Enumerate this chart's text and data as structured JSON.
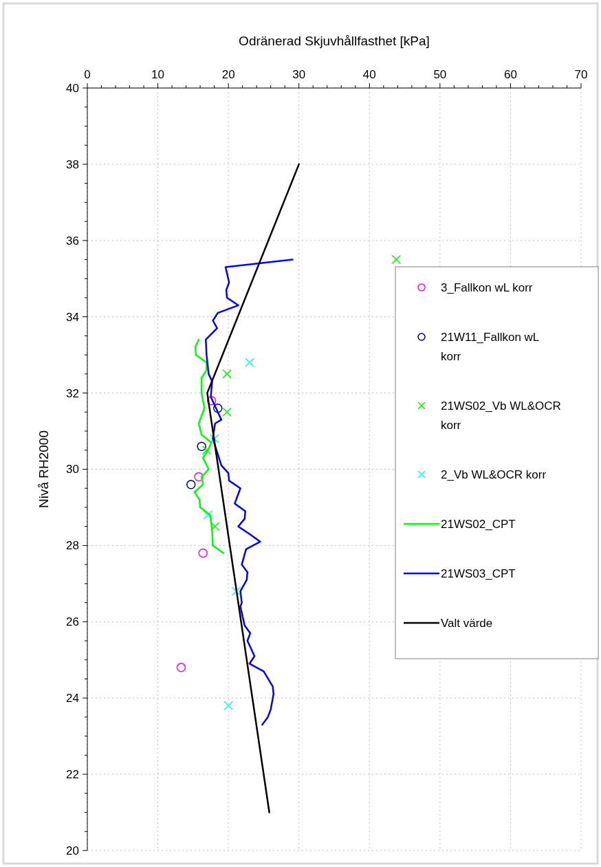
{
  "chart_data": {
    "type": "scatter",
    "xlabel": "Odränerad Skjuvhållfasthet [kPa]",
    "ylabel": "Nivå RH2000",
    "xlim": [
      0,
      70
    ],
    "ylim": [
      20,
      40
    ],
    "xticks": [
      0,
      {
        "value": 2,
        "label": null
      },
      {
        "value": 4,
        "label": null
      },
      {
        "value": 6,
        "label": null
      },
      {
        "value": 8,
        "label": null
      },
      10,
      {
        "value": 12,
        "label": null
      },
      {
        "value": 14,
        "label": null
      },
      {
        "value": 16,
        "label": null
      },
      {
        "value": 18,
        "label": null
      },
      20,
      {
        "value": 22,
        "label": null
      },
      {
        "value": 24,
        "label": null
      },
      {
        "value": 26,
        "label": null
      },
      {
        "value": 28,
        "label": null
      },
      30,
      {
        "value": 32,
        "label": null
      },
      {
        "value": 34,
        "label": null
      },
      {
        "value": 36,
        "label": null
      },
      {
        "value": 38,
        "label": null
      },
      40,
      {
        "value": 42,
        "label": null
      },
      {
        "value": 44,
        "label": null
      },
      {
        "value": 46,
        "label": null
      },
      {
        "value": 48,
        "label": null
      },
      50,
      {
        "value": 52,
        "label": null
      },
      {
        "value": 54,
        "label": null
      },
      {
        "value": 56,
        "label": null
      },
      {
        "value": 58,
        "label": null
      },
      60,
      {
        "value": 62,
        "label": null
      },
      {
        "value": 64,
        "label": null
      },
      {
        "value": 66,
        "label": null
      },
      {
        "value": 68,
        "label": null
      },
      70
    ],
    "yticks": [
      20,
      {
        "value": 20.5,
        "label": null
      },
      {
        "value": 21,
        "label": null
      },
      {
        "value": 21.5,
        "label": null
      },
      22,
      {
        "value": 22.5,
        "label": null
      },
      {
        "value": 23,
        "label": null
      },
      {
        "value": 23.5,
        "label": null
      },
      24,
      {
        "value": 24.5,
        "label": null
      },
      {
        "value": 25,
        "label": null
      },
      {
        "value": 25.5,
        "label": null
      },
      26,
      {
        "value": 26.5,
        "label": null
      },
      {
        "value": 27,
        "label": null
      },
      {
        "value": 27.5,
        "label": null
      },
      28,
      {
        "value": 28.5,
        "label": null
      },
      {
        "value": 29,
        "label": null
      },
      {
        "value": 29.5,
        "label": null
      },
      30,
      {
        "value": 30.5,
        "label": null
      },
      {
        "value": 31,
        "label": null
      },
      {
        "value": 31.5,
        "label": null
      },
      32,
      {
        "value": 32.5,
        "label": null
      },
      {
        "value": 33,
        "label": null
      },
      {
        "value": 33.5,
        "label": null
      },
      34,
      {
        "value": 34.5,
        "label": null
      },
      {
        "value": 35,
        "label": null
      },
      {
        "value": 35.5,
        "label": null
      },
      36,
      {
        "value": 36.5,
        "label": null
      },
      {
        "value": 37,
        "label": null
      },
      {
        "value": 37.5,
        "label": null
      },
      38,
      {
        "value": 38.5,
        "label": null
      },
      {
        "value": 39,
        "label": null
      },
      {
        "value": 39.5,
        "label": null
      },
      40
    ],
    "grid": true,
    "legend": "right",
    "series": [
      {
        "name": "3_Fallkon wL korr",
        "marker": "circle",
        "color": "#ff00ff",
        "x": [
          17.6,
          15.8,
          16.4,
          13.3
        ],
        "values": [
          31.8,
          29.8,
          27.8,
          24.8
        ]
      },
      {
        "name": "21W11_Fallkon wL korr",
        "marker": "circle",
        "color": "#000080",
        "x": [
          18.5,
          16.2,
          14.7
        ],
        "values": [
          31.6,
          30.6,
          29.6
        ]
      },
      {
        "name": "21WS02_Vb WL&OCR korr",
        "marker": "cross",
        "color": "#00ff00",
        "x": [
          43.8,
          19.8,
          19.8,
          16.9,
          18.1
        ],
        "values": [
          35.5,
          32.5,
          31.5,
          30.5,
          28.5
        ]
      },
      {
        "name": "2_Vb WL&OCR korr",
        "marker": "cross",
        "color": "#00ffff",
        "x": [
          23.0,
          18.0,
          17.1,
          21.1,
          20.0
        ],
        "values": [
          32.8,
          30.8,
          28.8,
          26.8,
          23.8
        ]
      },
      {
        "name": "21WS02_CPT",
        "type": "line",
        "marker": "none",
        "color": "#00ff00",
        "x": [
          15.8,
          15.3,
          15.4,
          16.9,
          16.9,
          16.2,
          16.2,
          16.6,
          15.8,
          16.2,
          17.6,
          17.1,
          16.4,
          17.2,
          16.2,
          16.4,
          15.2,
          15.9,
          16.0,
          17.4,
          17.7,
          17.8,
          19.3
        ],
        "values": [
          33.4,
          33.2,
          33.0,
          32.8,
          32.6,
          32.4,
          32.0,
          31.6,
          31.2,
          30.9,
          30.7,
          30.5,
          30.3,
          30.0,
          29.8,
          29.6,
          29.4,
          29.2,
          29.0,
          28.8,
          28.4,
          28.0,
          27.8
        ]
      },
      {
        "name": "21WS03_CPT",
        "type": "line",
        "marker": "none",
        "color": "#0000ff",
        "x": [
          29.1,
          19.6,
          20.1,
          19.7,
          19.8,
          21.4,
          18.5,
          17.8,
          18.4,
          16.8,
          16.9,
          17.2,
          17.7,
          17.5,
          18.0,
          19.0,
          18.1,
          17.8,
          19.0,
          20.0,
          20.1,
          21.7,
          20.9,
          22.4,
          22.3,
          21.4,
          23.0,
          24.5,
          22.5,
          21.9,
          22.7,
          22.6,
          21.7,
          21.9,
          21.7,
          22.3,
          23.1,
          22.7,
          23.7,
          23.0,
          25.0,
          26.3,
          26.4,
          26.0,
          25.6,
          24.8
        ],
        "values": [
          35.5,
          35.3,
          34.9,
          34.7,
          34.5,
          34.3,
          34.1,
          33.9,
          33.7,
          33.4,
          33.0,
          32.5,
          32.3,
          31.9,
          31.7,
          31.3,
          31.2,
          30.8,
          30.1,
          29.9,
          29.7,
          29.5,
          29.1,
          28.9,
          28.7,
          28.5,
          28.3,
          28.1,
          27.9,
          27.5,
          27.3,
          27.1,
          26.8,
          26.5,
          26.4,
          25.9,
          25.7,
          25.5,
          25.1,
          24.9,
          24.7,
          24.3,
          24.1,
          23.7,
          23.5,
          23.3
        ]
      },
      {
        "name": "Valt värde",
        "type": "line",
        "marker": "none",
        "color": "#000000",
        "x": [
          30,
          17,
          25.8
        ],
        "values": [
          38,
          32,
          21
        ]
      }
    ]
  }
}
